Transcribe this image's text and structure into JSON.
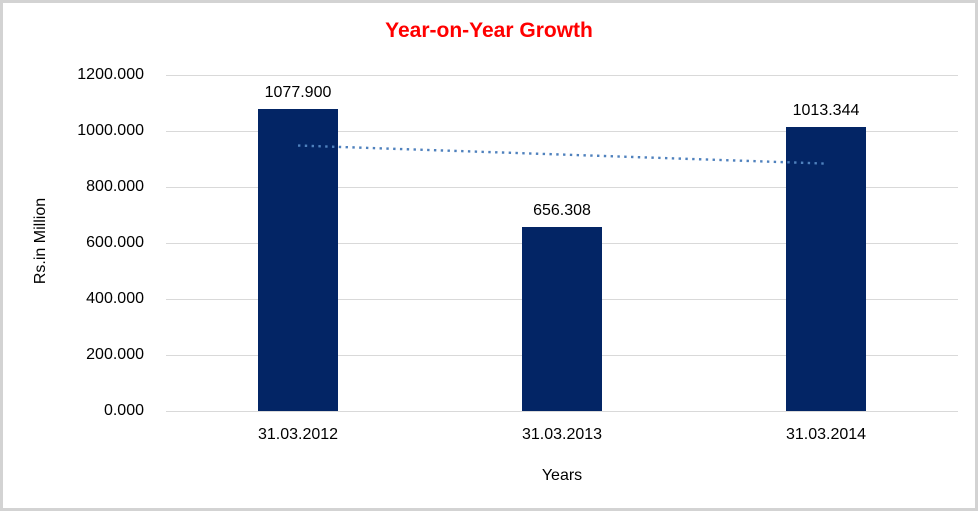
{
  "chart_data": {
    "type": "bar",
    "title": "Year-on-Year Growth",
    "title_color": "#ff0000",
    "xlabel": "Years",
    "ylabel": "Rs.in Million",
    "categories": [
      "31.03.2012",
      "31.03.2013",
      "31.03.2014"
    ],
    "values": [
      1077.9,
      656.308,
      1013.344
    ],
    "value_labels": [
      "1077.900",
      "656.308",
      "1013.344"
    ],
    "ylim": [
      0,
      1200
    ],
    "ytick_step": 200,
    "ytick_labels": [
      "0.000",
      "200.000",
      "400.000",
      "600.000",
      "800.000",
      "1000.000",
      "1200.000"
    ],
    "grid": true,
    "legend": "none",
    "bar_color": "#032565",
    "gridline_color": "#d9d9d9",
    "frame_border_color": "#d3d3d3",
    "trendline": {
      "kind": "linear-regression",
      "style": "dotted",
      "color": "#4f81bd"
    }
  }
}
